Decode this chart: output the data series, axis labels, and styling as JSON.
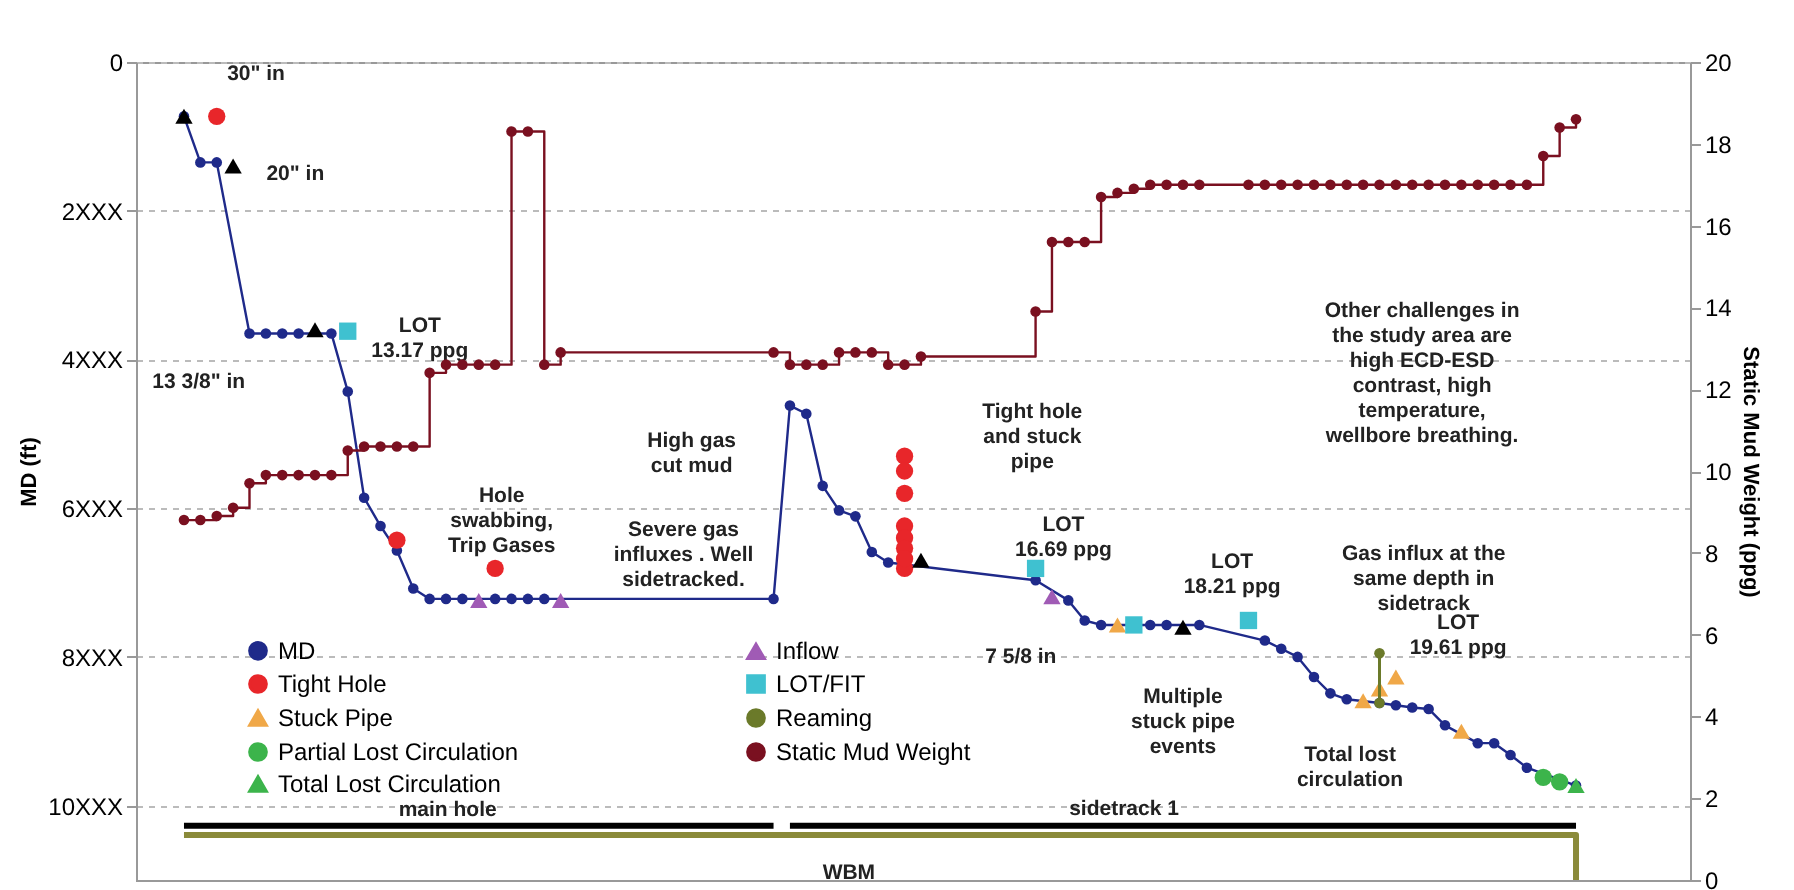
{
  "chart_data": {
    "type": "line",
    "ylabel": "MD (ft)",
    "y2label": "Static Mud Weight (ppg)",
    "categories": [
      null,
      null,
      null,
      null,
      null,
      null,
      null,
      null,
      null,
      null,
      null,
      null,
      null,
      null,
      null,
      null,
      null,
      null,
      null,
      null,
      null,
      null,
      null,
      null,
      null,
      null,
      null,
      null,
      null,
      null,
      null,
      null,
      null,
      null,
      null,
      null,
      null,
      null,
      null,
      null,
      null,
      null,
      null,
      null,
      null,
      null,
      null,
      null,
      null,
      null,
      null,
      null,
      null,
      null,
      null,
      null,
      null,
      null,
      null,
      null,
      null,
      null,
      null,
      null,
      null,
      null,
      null,
      null,
      null,
      null,
      null,
      null,
      null,
      null,
      null,
      null,
      null,
      null,
      null,
      null,
      null,
      null,
      null,
      null,
      null,
      null
    ],
    "ylim": [
      11,
      0
    ],
    "y2lim": [
      0,
      20
    ],
    "yticks": [
      0,
      {
        "value": 2,
        "label": "2XXX"
      },
      {
        "value": 4,
        "label": "4XXX"
      },
      {
        "value": 6,
        "label": "6XXX"
      },
      {
        "value": 8,
        "label": "8XXX"
      },
      {
        "value": 10,
        "label": "10XXX"
      }
    ],
    "y2ticks": [
      0,
      2,
      4,
      6,
      8,
      10,
      12,
      14,
      16,
      18,
      20
    ],
    "tick_labels": "y",
    "grid": "y",
    "legend": "bottom left",
    "series": [
      {
        "name": "MD",
        "marker": "circle",
        "color": "#1f2a8a",
        "values": [
          0.73,
          1.35,
          1.35,
          null,
          3.65,
          3.65,
          3.65,
          3.65,
          null,
          3.65,
          4.43,
          5.86,
          6.24,
          6.57,
          7.08,
          7.22,
          7.22,
          7.22,
          null,
          7.22,
          7.22,
          7.22,
          7.22,
          null,
          null,
          null,
          null,
          null,
          null,
          null,
          null,
          null,
          null,
          null,
          null,
          null,
          7.22,
          4.62,
          4.73,
          5.7,
          6.03,
          6.11,
          6.59,
          6.73,
          null,
          null,
          null,
          null,
          null,
          null,
          null,
          null,
          6.97,
          null,
          7.24,
          7.51,
          7.57,
          null,
          null,
          7.57,
          7.57,
          null,
          7.57,
          null,
          null,
          null,
          7.78,
          7.89,
          8.0,
          8.27,
          8.49,
          8.57,
          null,
          8.62,
          8.65,
          8.68,
          8.7,
          8.92,
          null,
          9.16,
          9.16,
          9.32,
          9.49,
          null,
          null,
          9.73
        ]
      },
      {
        "name": "Tight Hole",
        "type": "scatter",
        "marker": "circle",
        "color": "#e8262a",
        "values": [
          null,
          null,
          0.73,
          null,
          null,
          null,
          null,
          null,
          null,
          null,
          null,
          null,
          null,
          6.43,
          null,
          null,
          null,
          null,
          null,
          6.81,
          null,
          null,
          null,
          null,
          null,
          null,
          null,
          null,
          null,
          null,
          null,
          null,
          null,
          null,
          null,
          null,
          null,
          null,
          null,
          null,
          null,
          null,
          null,
          null,
          6.81,
          null,
          null,
          null,
          null,
          null,
          null,
          null,
          null,
          null,
          null,
          null,
          null,
          null,
          null,
          null,
          null,
          null,
          null,
          null,
          null,
          null,
          null,
          null,
          null,
          null,
          null,
          null,
          null,
          null,
          null,
          null,
          null,
          null,
          null,
          null,
          null,
          null,
          null,
          null,
          null,
          null
        ]
      },
      {
        "name": "Stuck Pipe",
        "type": "scatter",
        "marker": "triangle",
        "color": "#f0a848",
        "values": [
          null,
          null,
          null,
          null,
          null,
          null,
          null,
          null,
          null,
          null,
          null,
          null,
          null,
          null,
          null,
          null,
          null,
          null,
          null,
          null,
          null,
          null,
          null,
          null,
          null,
          null,
          null,
          null,
          null,
          null,
          null,
          null,
          null,
          null,
          null,
          null,
          null,
          null,
          null,
          null,
          null,
          null,
          null,
          null,
          null,
          null,
          null,
          null,
          null,
          null,
          null,
          null,
          null,
          null,
          null,
          null,
          null,
          7.57,
          null,
          null,
          null,
          null,
          null,
          null,
          null,
          null,
          null,
          null,
          null,
          null,
          null,
          null,
          8.59,
          8.43,
          8.27,
          null,
          null,
          null,
          9.0,
          null,
          null,
          null,
          null,
          null,
          null,
          null
        ]
      },
      {
        "name": "Partial Lost Circulation",
        "type": "scatter",
        "marker": "circle",
        "color": "#3cb44b",
        "values": [
          null,
          null,
          null,
          null,
          null,
          null,
          null,
          null,
          null,
          null,
          null,
          null,
          null,
          null,
          null,
          null,
          null,
          null,
          null,
          null,
          null,
          null,
          null,
          null,
          null,
          null,
          null,
          null,
          null,
          null,
          null,
          null,
          null,
          null,
          null,
          null,
          null,
          null,
          null,
          null,
          null,
          null,
          null,
          null,
          null,
          null,
          null,
          null,
          null,
          null,
          null,
          null,
          null,
          null,
          null,
          null,
          null,
          null,
          null,
          null,
          null,
          null,
          null,
          null,
          null,
          null,
          null,
          null,
          null,
          null,
          null,
          null,
          null,
          null,
          null,
          null,
          null,
          null,
          null,
          null,
          null,
          null,
          null,
          9.62,
          9.68,
          null
        ]
      },
      {
        "name": "Total Lost Circulation",
        "type": "scatter",
        "marker": "triangle",
        "color": "#3cb44b",
        "values": [
          null,
          null,
          null,
          null,
          null,
          null,
          null,
          null,
          null,
          null,
          null,
          null,
          null,
          null,
          null,
          null,
          null,
          null,
          null,
          null,
          null,
          null,
          null,
          null,
          null,
          null,
          null,
          null,
          null,
          null,
          null,
          null,
          null,
          null,
          null,
          null,
          null,
          null,
          null,
          null,
          null,
          null,
          null,
          null,
          null,
          null,
          null,
          null,
          null,
          null,
          null,
          null,
          null,
          null,
          null,
          null,
          null,
          null,
          null,
          null,
          null,
          null,
          null,
          null,
          null,
          null,
          null,
          null,
          null,
          null,
          null,
          null,
          null,
          null,
          null,
          null,
          null,
          null,
          null,
          null,
          null,
          null,
          null,
          null,
          null,
          9.73
        ]
      },
      {
        "name": "Inflow",
        "type": "scatter",
        "marker": "triangle",
        "color": "#a05bb5",
        "values": [
          null,
          null,
          null,
          null,
          null,
          null,
          null,
          null,
          null,
          null,
          null,
          null,
          null,
          null,
          null,
          null,
          null,
          null,
          7.24,
          null,
          null,
          null,
          null,
          7.24,
          null,
          null,
          null,
          null,
          null,
          null,
          null,
          null,
          null,
          null,
          null,
          null,
          null,
          null,
          null,
          null,
          null,
          null,
          null,
          null,
          null,
          null,
          null,
          null,
          null,
          null,
          null,
          null,
          null,
          7.19,
          null,
          null,
          null,
          null,
          null,
          null,
          null,
          null,
          null,
          null,
          null,
          null,
          null,
          null,
          null,
          null,
          null,
          null,
          null,
          null,
          null,
          null,
          null,
          null,
          null,
          null,
          null,
          null,
          null,
          null,
          null,
          null
        ]
      },
      {
        "name": "LOT/FIT",
        "type": "scatter",
        "marker": "square",
        "color": "#3fc1d0",
        "values": [
          null,
          null,
          null,
          null,
          null,
          null,
          null,
          null,
          null,
          null,
          3.62,
          null,
          null,
          null,
          null,
          null,
          null,
          null,
          null,
          null,
          null,
          null,
          null,
          null,
          null,
          null,
          null,
          null,
          null,
          null,
          null,
          null,
          null,
          null,
          null,
          null,
          null,
          null,
          null,
          null,
          null,
          null,
          null,
          null,
          null,
          null,
          null,
          null,
          null,
          null,
          null,
          null,
          6.81,
          null,
          null,
          null,
          null,
          null,
          7.57,
          null,
          null,
          null,
          null,
          null,
          null,
          7.51,
          null,
          null,
          null,
          null,
          null,
          null,
          null,
          null,
          null,
          null,
          null,
          null,
          null,
          null,
          null,
          null,
          null,
          null,
          null,
          null
        ]
      },
      {
        "name": "Reaming",
        "marker": "circle",
        "color": "#6b7a2a",
        "values": [
          null,
          null,
          null,
          null,
          null,
          null,
          null,
          null,
          null,
          null,
          null,
          null,
          null,
          null,
          null,
          null,
          null,
          null,
          null,
          null,
          null,
          null,
          null,
          null,
          null,
          null,
          null,
          null,
          null,
          null,
          null,
          null,
          null,
          null,
          null,
          null,
          null,
          null,
          null,
          null,
          null,
          null,
          null,
          null,
          null,
          null,
          null,
          null,
          null,
          null,
          null,
          null,
          null,
          null,
          null,
          null,
          null,
          null,
          null,
          null,
          null,
          null,
          null,
          null,
          null,
          null,
          null,
          null,
          null,
          null,
          null,
          null,
          null,
          7.95,
          null,
          null,
          null,
          null,
          null,
          null,
          null,
          null,
          null,
          null,
          null,
          null
        ],
        "errors": [
          null,
          null,
          null,
          null,
          null,
          null,
          null,
          null,
          null,
          null,
          null,
          null,
          null,
          null,
          null,
          null,
          null,
          null,
          null,
          null,
          null,
          null,
          null,
          null,
          null,
          null,
          null,
          null,
          null,
          null,
          null,
          null,
          null,
          null,
          null,
          null,
          null,
          null,
          null,
          null,
          null,
          null,
          null,
          null,
          null,
          null,
          null,
          null,
          null,
          null,
          null,
          null,
          null,
          null,
          null,
          null,
          null,
          null,
          null,
          null,
          null,
          null,
          null,
          null,
          null,
          null,
          null,
          null,
          null,
          null,
          null,
          null,
          null,
          [
            7.95,
            8.62
          ],
          null,
          null,
          null,
          null,
          null,
          null,
          null,
          null,
          null,
          null,
          null,
          null
        ]
      },
      {
        "name": "Static Mud Weight",
        "type": "step",
        "axis": "y2",
        "marker": "circle",
        "color": "#7a1020",
        "values": [
          8.8,
          8.8,
          8.9,
          9.1,
          9.7,
          9.9,
          9.9,
          9.9,
          9.9,
          9.9,
          10.5,
          10.6,
          10.6,
          10.6,
          10.6,
          12.4,
          12.6,
          12.6,
          12.6,
          12.6,
          18.3,
          18.3,
          12.6,
          12.9,
          null,
          null,
          null,
          null,
          null,
          null,
          null,
          null,
          null,
          null,
          null,
          null,
          12.9,
          12.6,
          12.6,
          12.6,
          12.9,
          12.9,
          12.9,
          12.6,
          12.6,
          12.8,
          null,
          null,
          null,
          null,
          null,
          null,
          13.9,
          15.6,
          15.6,
          15.6,
          16.7,
          16.8,
          16.9,
          17.0,
          17.0,
          17.0,
          17.0,
          null,
          null,
          17.0,
          17.0,
          17.0,
          17.0,
          17.0,
          17.0,
          17.0,
          17.0,
          17.0,
          17.0,
          17.0,
          17.0,
          17.0,
          17.0,
          17.0,
          17.0,
          17.0,
          17.0,
          17.7,
          18.4,
          18.6
        ]
      },
      {
        "type": "scatter",
        "marker": "circle",
        "color": "#e8262a",
        "values": [
          null,
          null,
          null,
          null,
          null,
          null,
          null,
          null,
          null,
          null,
          null,
          null,
          null,
          null,
          null,
          null,
          null,
          null,
          null,
          null,
          null,
          null,
          null,
          null,
          null,
          null,
          null,
          null,
          null,
          null,
          null,
          null,
          null,
          null,
          null,
          null,
          null,
          null,
          null,
          null,
          null,
          null,
          null,
          null,
          5.3,
          null,
          null,
          null,
          null,
          null,
          null,
          null,
          null,
          null,
          null,
          null,
          null,
          null,
          null,
          null,
          null,
          null,
          null,
          null,
          null,
          null,
          null,
          null,
          null,
          null,
          null,
          null,
          null,
          null,
          null,
          null,
          null,
          null,
          null,
          null,
          null,
          null,
          null,
          null,
          null,
          null
        ]
      },
      {
        "type": "scatter",
        "marker": "circle",
        "color": "#e8262a",
        "values": [
          null,
          null,
          null,
          null,
          null,
          null,
          null,
          null,
          null,
          null,
          null,
          null,
          null,
          null,
          null,
          null,
          null,
          null,
          null,
          null,
          null,
          null,
          null,
          null,
          null,
          null,
          null,
          null,
          null,
          null,
          null,
          null,
          null,
          null,
          null,
          null,
          null,
          null,
          null,
          null,
          null,
          null,
          null,
          null,
          5.5,
          null,
          null,
          null,
          null,
          null,
          null,
          null,
          null,
          null,
          null,
          null,
          null,
          null,
          null,
          null,
          null,
          null,
          null,
          null,
          null,
          null,
          null,
          null,
          null,
          null,
          null,
          null,
          null,
          null,
          null,
          null,
          null,
          null,
          null,
          null,
          null,
          null,
          null,
          null,
          null,
          null
        ]
      },
      {
        "type": "scatter",
        "marker": "circle",
        "color": "#e8262a",
        "values": [
          null,
          null,
          null,
          null,
          null,
          null,
          null,
          null,
          null,
          null,
          null,
          null,
          null,
          null,
          null,
          null,
          null,
          null,
          null,
          null,
          null,
          null,
          null,
          null,
          null,
          null,
          null,
          null,
          null,
          null,
          null,
          null,
          null,
          null,
          null,
          null,
          null,
          null,
          null,
          null,
          null,
          null,
          null,
          null,
          5.8,
          null,
          null,
          null,
          null,
          null,
          null,
          null,
          null,
          null,
          null,
          null,
          null,
          null,
          null,
          null,
          null,
          null,
          null,
          null,
          null,
          null,
          null,
          null,
          null,
          null,
          null,
          null,
          null,
          null,
          null,
          null,
          null,
          null,
          null,
          null,
          null,
          null,
          null,
          null,
          null,
          null
        ]
      },
      {
        "type": "scatter",
        "marker": "circle",
        "color": "#e8262a",
        "values": [
          null,
          null,
          null,
          null,
          null,
          null,
          null,
          null,
          null,
          null,
          null,
          null,
          null,
          null,
          null,
          null,
          null,
          null,
          null,
          null,
          null,
          null,
          null,
          null,
          null,
          null,
          null,
          null,
          null,
          null,
          null,
          null,
          null,
          null,
          null,
          null,
          null,
          null,
          null,
          null,
          null,
          null,
          null,
          null,
          6.24,
          null,
          null,
          null,
          null,
          null,
          null,
          null,
          null,
          null,
          null,
          null,
          null,
          null,
          null,
          null,
          null,
          null,
          null,
          null,
          null,
          null,
          null,
          null,
          null,
          null,
          null,
          null,
          null,
          null,
          null,
          null,
          null,
          null,
          null,
          null,
          null,
          null,
          null,
          null,
          null,
          null
        ]
      },
      {
        "type": "scatter",
        "marker": "circle",
        "color": "#e8262a",
        "values": [
          null,
          null,
          null,
          null,
          null,
          null,
          null,
          null,
          null,
          null,
          null,
          null,
          null,
          null,
          null,
          null,
          null,
          null,
          null,
          null,
          null,
          null,
          null,
          null,
          null,
          null,
          null,
          null,
          null,
          null,
          null,
          null,
          null,
          null,
          null,
          null,
          null,
          null,
          null,
          null,
          null,
          null,
          null,
          null,
          6.4,
          null,
          null,
          null,
          null,
          null,
          null,
          null,
          null,
          null,
          null,
          null,
          null,
          null,
          null,
          null,
          null,
          null,
          null,
          null,
          null,
          null,
          null,
          null,
          null,
          null,
          null,
          null,
          null,
          null,
          null,
          null,
          null,
          null,
          null,
          null,
          null,
          null,
          null,
          null,
          null,
          null
        ]
      },
      {
        "type": "scatter",
        "marker": "circle",
        "color": "#e8262a",
        "values": [
          null,
          null,
          null,
          null,
          null,
          null,
          null,
          null,
          null,
          null,
          null,
          null,
          null,
          null,
          null,
          null,
          null,
          null,
          null,
          null,
          null,
          null,
          null,
          null,
          null,
          null,
          null,
          null,
          null,
          null,
          null,
          null,
          null,
          null,
          null,
          null,
          null,
          null,
          null,
          null,
          null,
          null,
          null,
          null,
          6.54,
          null,
          null,
          null,
          null,
          null,
          null,
          null,
          null,
          null,
          null,
          null,
          null,
          null,
          null,
          null,
          null,
          null,
          null,
          null,
          null,
          null,
          null,
          null,
          null,
          null,
          null,
          null,
          null,
          null,
          null,
          null,
          null,
          null,
          null,
          null,
          null,
          null,
          null,
          null,
          null,
          null
        ]
      },
      {
        "type": "scatter",
        "marker": "circle",
        "color": "#e8262a",
        "values": [
          null,
          null,
          null,
          null,
          null,
          null,
          null,
          null,
          null,
          null,
          null,
          null,
          null,
          null,
          null,
          null,
          null,
          null,
          null,
          null,
          null,
          null,
          null,
          null,
          null,
          null,
          null,
          null,
          null,
          null,
          null,
          null,
          null,
          null,
          null,
          null,
          null,
          null,
          null,
          null,
          null,
          null,
          null,
          null,
          6.68,
          null,
          null,
          null,
          null,
          null,
          null,
          null,
          null,
          null,
          null,
          null,
          null,
          null,
          null,
          null,
          null,
          null,
          null,
          null,
          null,
          null,
          null,
          null,
          null,
          null,
          null,
          null,
          null,
          null,
          null,
          null,
          null,
          null,
          null,
          null,
          null,
          null,
          null,
          null,
          null,
          null
        ]
      },
      {
        "type": "scatter",
        "marker": "triangle",
        "color": "#000000",
        "values": [
          0.73,
          null,
          null,
          1.4,
          null,
          null,
          null,
          null,
          3.6,
          null,
          null,
          null,
          null,
          null,
          null,
          null,
          null,
          null,
          null,
          null,
          null,
          null,
          null,
          null,
          null,
          null,
          null,
          null,
          null,
          null,
          null,
          null,
          null,
          null,
          null,
          null,
          null,
          null,
          null,
          null,
          null,
          null,
          null,
          null,
          null,
          6.7,
          null,
          null,
          null,
          null,
          null,
          null,
          null,
          null,
          null,
          null,
          null,
          null,
          null,
          null,
          null,
          7.6,
          null,
          null,
          null,
          null,
          null,
          null,
          null,
          null,
          null,
          null,
          null,
          null,
          null,
          null,
          null,
          null,
          null,
          null,
          null,
          null,
          null,
          null,
          null,
          null
        ]
      },
      {
        "marker": "none",
        "color": "#000000",
        "values": [
          10.27,
          null,
          null,
          null,
          null,
          null,
          null,
          null,
          null,
          null,
          null,
          null,
          null,
          null,
          null,
          null,
          null,
          null,
          null,
          null,
          null,
          null,
          null,
          null,
          null,
          null,
          null,
          null,
          null,
          null,
          null,
          null,
          null,
          null,
          null,
          null,
          10.27,
          null,
          null,
          null,
          null,
          null,
          null,
          null,
          null,
          null,
          null,
          null,
          null,
          null,
          null,
          null,
          null,
          null,
          null,
          null,
          null,
          null,
          null,
          null,
          null,
          null,
          null,
          null,
          null,
          null,
          null,
          null,
          null,
          null,
          null,
          null,
          null,
          null,
          null,
          null,
          null,
          null,
          null,
          null,
          null,
          null,
          null,
          null,
          null,
          null
        ]
      },
      {
        "marker": "none",
        "color": "#000000",
        "values": [
          null,
          null,
          null,
          null,
          null,
          null,
          null,
          null,
          null,
          null,
          null,
          null,
          null,
          null,
          null,
          null,
          null,
          null,
          null,
          null,
          null,
          null,
          null,
          null,
          null,
          null,
          null,
          null,
          null,
          null,
          null,
          null,
          null,
          null,
          null,
          null,
          null,
          10.27,
          null,
          null,
          null,
          null,
          null,
          null,
          null,
          null,
          null,
          null,
          null,
          null,
          null,
          null,
          null,
          null,
          null,
          null,
          null,
          null,
          null,
          null,
          null,
          null,
          null,
          null,
          null,
          null,
          null,
          null,
          null,
          null,
          null,
          null,
          null,
          null,
          null,
          null,
          null,
          null,
          null,
          null,
          null,
          null,
          null,
          null,
          null,
          10.27
        ]
      },
      {
        "type": "step",
        "marker": "none",
        "axis": "y2",
        "color": "#8a8a3a",
        "values": [
          1.1,
          null,
          null,
          null,
          null,
          null,
          null,
          null,
          null,
          null,
          null,
          null,
          null,
          null,
          null,
          null,
          null,
          null,
          null,
          null,
          null,
          null,
          null,
          null,
          null,
          null,
          null,
          null,
          null,
          null,
          null,
          null,
          null,
          null,
          null,
          null,
          null,
          null,
          null,
          null,
          null,
          null,
          null,
          null,
          null,
          null,
          null,
          null,
          null,
          null,
          null,
          null,
          null,
          null,
          null,
          null,
          null,
          null,
          null,
          null,
          null,
          null,
          null,
          null,
          null,
          null,
          null,
          null,
          null,
          null,
          null,
          null,
          null,
          null,
          null,
          null,
          null,
          null,
          null,
          null,
          null,
          null,
          null,
          null,
          null,
          0
        ]
      }
    ],
    "annotations": [
      "30\" in",
      "20\" in",
      "13 3/8\" in",
      "LOT\n13.17 ppg",
      "LOT\n16.69 ppg",
      "LOT\n18.21 ppg",
      "LOT\n19.61 ppg",
      "7 5/8 in",
      "Hole\nswabbing,\nTrip Gases",
      "High gas\ncut mud",
      "Severe gas\ninfluxes . Well\nsidetracked.",
      "Tight hole\nand stuck\npipe",
      "Other challenges in\nthe study area are\nhigh ECD-ESD\ncontrast, high\ntemperature,\nwellbore breathing.",
      "Gas influx at the\nsame depth in\nsidetrack",
      "Multiple\nstuck pipe\nevents",
      "Total lost\ncirculation",
      "main hole",
      "sidetrack 1",
      "WBM"
    ]
  }
}
